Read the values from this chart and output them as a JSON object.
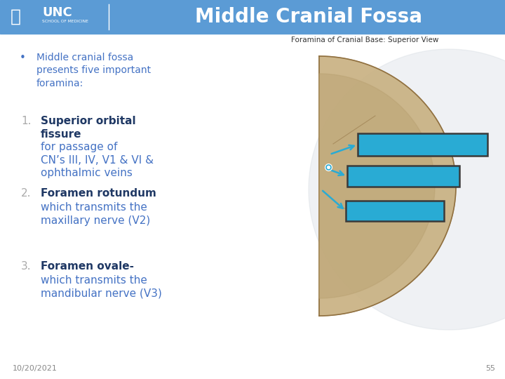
{
  "title": "Middle Cranial Fossa",
  "header_bg_color": "#5B9BD5",
  "header_text_color": "#FFFFFF",
  "slide_bg_color": "#FFFFFF",
  "bullet_text_line1": "Middle cranial fossa",
  "bullet_text_line2": "presents five important",
  "bullet_text_line3": "foramina:",
  "bullet_color": "#4472C4",
  "items": [
    {
      "num": "1.",
      "bold_text": "Superior orbital\nfissure",
      "regular_text": " for passage of\nCN’s III, IV, V1 & VI &\nophthalmic veins",
      "bold_color": "#1F3864",
      "regular_color": "#4472C4"
    },
    {
      "num": "2.",
      "bold_text": "Foramen rotundum",
      "regular_text": "\nwhich transmits the\nmaxillary nerve (V2)",
      "bold_color": "#1F3864",
      "regular_color": "#4472C4"
    },
    {
      "num": "3.",
      "bold_text": "Foramen ovale-",
      "regular_text": "\nwhich transmits the\nmandibular nerve (V3)",
      "bold_color": "#1F3864",
      "regular_color": "#4472C4"
    }
  ],
  "image_caption": "Foramina of Cranial Base: Superior View",
  "image_caption_color": "#333333",
  "num_color": "#AAAAAA",
  "footer_date": "10/20/2021",
  "footer_page": "55",
  "footer_color": "#888888",
  "cyan_bar_color": "#29ABD4",
  "cyan_bar_border": "#3A3A3A",
  "gray_circle_color": "#C8D0D8",
  "arrow_color": "#29ABD4",
  "skull_color": "#C8B080",
  "skull_inner_color": "#B8A070",
  "skull_border_color": "#907040"
}
